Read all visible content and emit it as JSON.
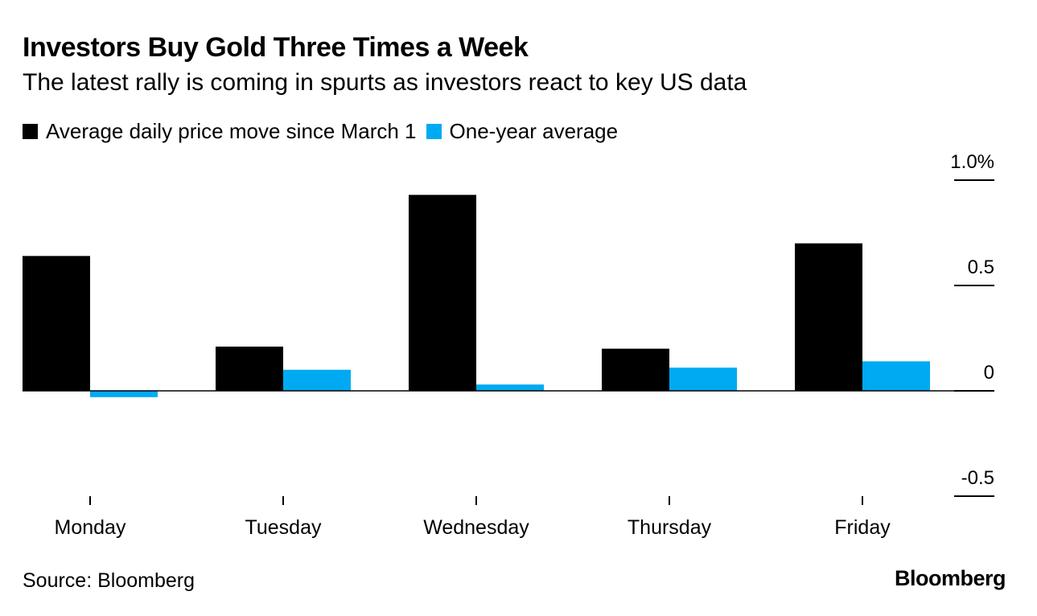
{
  "title": "Investors Buy Gold Three Times a Week",
  "subtitle": "The latest rally is coming in spurts as investors react to key US data",
  "source": "Source: Bloomberg",
  "brand": "Bloomberg",
  "colors": {
    "series_1": "#000000",
    "series_2": "#00aaf2",
    "axis": "#000000",
    "text": "#000000"
  },
  "chart_data": {
    "type": "bar",
    "title": "Investors Buy Gold Three Times a Week",
    "subtitle": "The latest rally is coming in spurts as investors react to key US data",
    "categories": [
      "Monday",
      "Tuesday",
      "Wednesday",
      "Thursday",
      "Friday"
    ],
    "series": [
      {
        "name": "Average daily price move since March 1",
        "color": "#000000",
        "values": [
          0.64,
          0.21,
          0.93,
          0.2,
          0.7
        ]
      },
      {
        "name": "One-year average",
        "color": "#00aaf2",
        "values": [
          -0.03,
          0.1,
          0.03,
          0.11,
          0.14
        ]
      }
    ],
    "yticks": [
      {
        "value": 1.0,
        "label": "1.0%"
      },
      {
        "value": 0.5,
        "label": "0.5"
      },
      {
        "value": 0,
        "label": "0"
      },
      {
        "value": -0.5,
        "label": "-0.5"
      }
    ],
    "ylim": [
      -0.5,
      1.0
    ],
    "xlabel": "",
    "ylabel": "",
    "y_axis_side": "right",
    "legend_position": "top-left",
    "grid": false
  }
}
